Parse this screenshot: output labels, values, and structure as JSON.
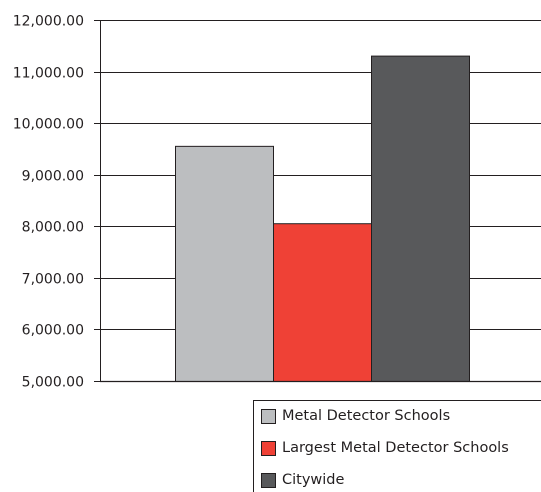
{
  "chart_data": {
    "type": "bar",
    "categories": [
      ""
    ],
    "series": [
      {
        "name": "Metal Detector Schools",
        "values": [
          9550
        ],
        "color": "#bcbec0"
      },
      {
        "name": "Largest Metal Detector Schools",
        "values": [
          8050
        ],
        "color": "#ef4136"
      },
      {
        "name": "Citywide",
        "values": [
          11300
        ],
        "color": "#58595b"
      }
    ],
    "ylim": [
      5000,
      12000
    ],
    "yticks": [
      {
        "value": 12000,
        "label": "12,000.00"
      },
      {
        "value": 11000,
        "label": "11,000.00"
      },
      {
        "value": 10000,
        "label": "10,000.00"
      },
      {
        "value": 9000,
        "label": "9,000.00"
      },
      {
        "value": 8000,
        "label": "8,000.00"
      },
      {
        "value": 7000,
        "label": "7,000.00"
      },
      {
        "value": 6000,
        "label": "6,000.00"
      },
      {
        "value": 5000,
        "label": "5,000.00"
      }
    ],
    "grid": true,
    "legend_position": "bottom-right"
  }
}
